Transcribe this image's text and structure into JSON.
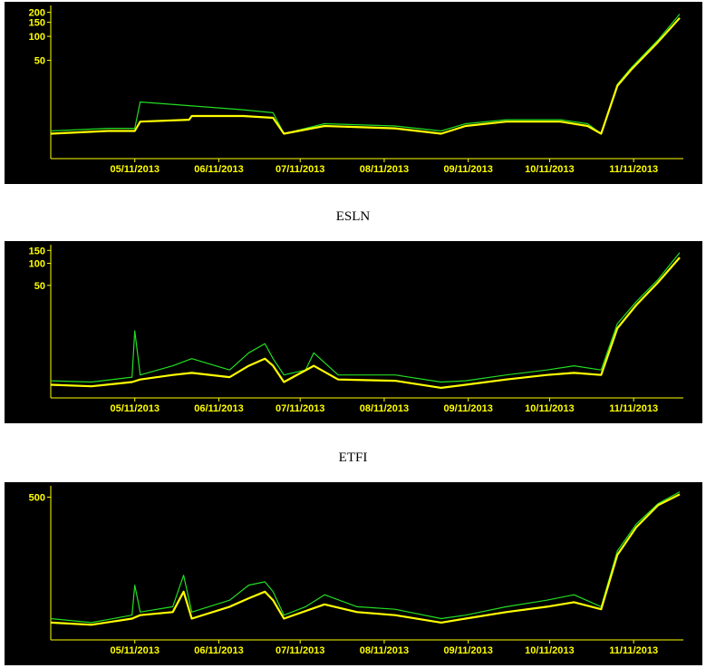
{
  "colors": {
    "background": "#000000",
    "axis": "#ffff00",
    "series_high_low": "#22dd22",
    "series_close": "#ffff00"
  },
  "captions": [
    "",
    "ESLN",
    "ETFI"
  ],
  "chart_data": [
    {
      "type": "line",
      "title": "",
      "x_tick_labels": [
        "05/11/2013",
        "06/11/2013",
        "07/11/2013",
        "08/11/2013",
        "09/11/2013",
        "10/11/2013",
        "11/11/2013"
      ],
      "y_tick_labels": [
        "200",
        "150",
        "100",
        "50"
      ],
      "y_scale": "log",
      "ylim": [
        3,
        220
      ],
      "grid": false,
      "legend": "none",
      "series": [
        {
          "color": "#22dd22",
          "x": [
            "04/10/2013",
            "05/01/2013",
            "05/11/2013",
            "05/13/2013",
            "06/20/2013",
            "07/01/2013",
            "07/05/2013",
            "07/20/2013",
            "08/15/2013",
            "09/01/2013",
            "09/10/2013",
            "09/25/2013",
            "10/15/2013",
            "10/25/2013",
            "10/30/2013",
            "11/05/2013",
            "11/10/2013",
            "11/20/2013",
            "11/28/2013"
          ],
          "values": [
            6.5,
            7,
            7,
            15,
            12,
            11,
            6,
            8,
            7.5,
            6.5,
            8,
            9,
            9,
            8,
            6,
            25,
            40,
            90,
            190
          ]
        },
        {
          "color": "#ffff00",
          "x": [
            "04/10/2013",
            "05/01/2013",
            "05/11/2013",
            "05/13/2013",
            "05/31/2013",
            "06/01/2013",
            "06/20/2013",
            "07/01/2013",
            "07/05/2013",
            "07/20/2013",
            "08/15/2013",
            "09/01/2013",
            "09/10/2013",
            "09/25/2013",
            "10/15/2013",
            "10/25/2013",
            "10/30/2013",
            "11/05/2013",
            "11/10/2013",
            "11/20/2013",
            "11/28/2013"
          ],
          "values": [
            6,
            6.5,
            6.5,
            8.5,
            9,
            10,
            10,
            9.5,
            6,
            7.5,
            7,
            6,
            7.5,
            8.5,
            8.5,
            7.5,
            6,
            24,
            38,
            85,
            170
          ]
        }
      ]
    },
    {
      "type": "line",
      "title": "ESLN",
      "x_tick_labels": [
        "05/11/2013",
        "06/11/2013",
        "07/11/2013",
        "08/11/2013",
        "09/11/2013",
        "10/11/2013",
        "11/11/2013"
      ],
      "y_tick_labels": [
        "150",
        "100",
        "50"
      ],
      "y_scale": "log",
      "ylim": [
        1.5,
        160
      ],
      "grid": false,
      "legend": "none",
      "series": [
        {
          "color": "#22dd22",
          "x": [
            "04/10/2013",
            "04/25/2013",
            "05/10/2013",
            "05/11/2013",
            "05/13/2013",
            "05/25/2013",
            "06/01/2013",
            "06/15/2013",
            "06/22/2013",
            "06/28/2013",
            "07/01/2013",
            "07/05/2013",
            "07/13/2013",
            "07/16/2013",
            "07/25/2013",
            "08/15/2013",
            "09/01/2013",
            "09/10/2013",
            "09/25/2013",
            "10/10/2013",
            "10/20/2013",
            "10/30/2013",
            "11/05/2013",
            "11/12/2013",
            "11/20/2013",
            "11/28/2013"
          ],
          "values": [
            2.5,
            2.4,
            2.8,
            12,
            3,
            4,
            5,
            3.5,
            6,
            8,
            5,
            3,
            3.5,
            6,
            3,
            3,
            2.4,
            2.5,
            3,
            3.5,
            4,
            3.5,
            15,
            30,
            60,
            140
          ]
        },
        {
          "color": "#ffff00",
          "x": [
            "04/10/2013",
            "04/25/2013",
            "05/10/2013",
            "05/13/2013",
            "05/25/2013",
            "06/01/2013",
            "06/15/2013",
            "06/22/2013",
            "06/28/2013",
            "07/01/2013",
            "07/05/2013",
            "07/16/2013",
            "07/25/2013",
            "08/15/2013",
            "09/01/2013",
            "09/10/2013",
            "09/25/2013",
            "10/10/2013",
            "10/20/2013",
            "10/30/2013",
            "11/05/2013",
            "11/12/2013",
            "11/20/2013",
            "11/28/2013"
          ],
          "values": [
            2.2,
            2.1,
            2.4,
            2.6,
            3,
            3.2,
            2.8,
            4,
            5,
            4,
            2.4,
            4,
            2.6,
            2.5,
            2,
            2.2,
            2.6,
            3,
            3.2,
            3,
            13,
            27,
            55,
            120
          ]
        }
      ]
    },
    {
      "type": "line",
      "title": "ETFI",
      "x_tick_labels": [
        "05/11/2013",
        "06/11/2013",
        "07/11/2013",
        "08/11/2013",
        "09/11/2013",
        "10/11/2013",
        "11/11/2013"
      ],
      "y_tick_labels": [
        "500"
      ],
      "y_scale": "log",
      "ylim": [
        4,
        650
      ],
      "grid": false,
      "legend": "none",
      "series": [
        {
          "color": "#22dd22",
          "x": [
            "04/10/2013",
            "04/25/2013",
            "05/10/2013",
            "05/11/2013",
            "05/13/2013",
            "05/25/2013",
            "05/29/2013",
            "06/01/2013",
            "06/15/2013",
            "06/22/2013",
            "06/28/2013",
            "07/01/2013",
            "07/05/2013",
            "07/13/2013",
            "07/20/2013",
            "08/01/2013",
            "08/15/2013",
            "09/01/2013",
            "09/10/2013",
            "09/25/2013",
            "10/10/2013",
            "10/20/2013",
            "10/30/2013",
            "11/05/2013",
            "11/12/2013",
            "11/20/2013",
            "11/28/2013"
          ],
          "values": [
            8,
            7,
            9,
            25,
            10,
            12,
            35,
            10,
            15,
            25,
            28,
            20,
            9,
            12,
            18,
            12,
            11,
            8,
            9,
            12,
            15,
            18,
            12,
            80,
            200,
            400,
            600
          ]
        },
        {
          "color": "#ffff00",
          "x": [
            "04/10/2013",
            "04/25/2013",
            "05/10/2013",
            "05/13/2013",
            "05/25/2013",
            "05/29/2013",
            "06/01/2013",
            "06/15/2013",
            "06/22/2013",
            "06/28/2013",
            "07/01/2013",
            "07/05/2013",
            "07/20/2013",
            "08/01/2013",
            "08/15/2013",
            "09/01/2013",
            "09/10/2013",
            "09/25/2013",
            "10/10/2013",
            "10/20/2013",
            "10/30/2013",
            "11/05/2013",
            "11/12/2013",
            "11/20/2013",
            "11/28/2013"
          ],
          "values": [
            7,
            6.5,
            8,
            9,
            10,
            20,
            8,
            12,
            16,
            20,
            15,
            8,
            13,
            10,
            9,
            7,
            8,
            10,
            12,
            14,
            11,
            70,
            180,
            380,
            550
          ]
        }
      ]
    }
  ]
}
